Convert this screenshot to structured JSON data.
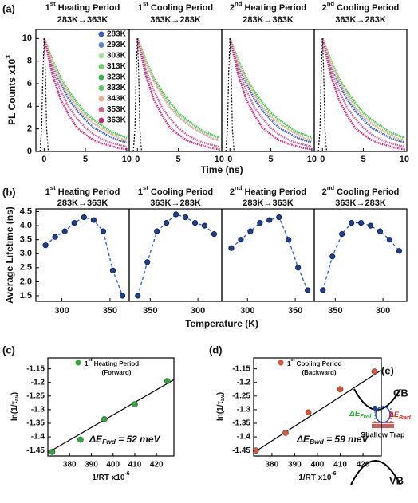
{
  "chart_data": [
    {
      "type": "line",
      "panel_label": "(a)",
      "ylabel": "PL Counts x10",
      "ylabel_sup": "3",
      "xlabel": "Time (ns)",
      "xlim": [
        -1,
        10.3
      ],
      "xticks": [
        0,
        5,
        10
      ],
      "ylim": [
        0,
        10.8
      ],
      "yticks": [
        0,
        2,
        4,
        6,
        8,
        10
      ],
      "x": [
        0,
        1,
        2,
        3,
        4,
        5,
        6,
        7,
        8,
        9,
        10
      ],
      "series": [
        {
          "name": "283K",
          "color": "#3a5bbf"
        },
        {
          "name": "293K",
          "color": "#5b86d6"
        },
        {
          "name": "303K",
          "color": "#a6e3a1"
        },
        {
          "name": "313K",
          "color": "#72d26a"
        },
        {
          "name": "323K",
          "color": "#2fb54a"
        },
        {
          "name": "333K",
          "color": "#58c95a"
        },
        {
          "name": "343K",
          "color": "#e9b08a"
        },
        {
          "name": "353K",
          "color": "#c8609a"
        },
        {
          "name": "363K",
          "color": "#c02a7e"
        }
      ],
      "irf": {
        "x": [
          -0.5,
          -0.3,
          -0.15,
          0,
          0.15,
          0.3,
          0.5
        ],
        "values": [
          0,
          2,
          7,
          10,
          7,
          2,
          0
        ]
      },
      "panels": [
        {
          "title_num": "1",
          "title_sup": "st",
          "title_rest": " Heating Period",
          "subtitle": "283K→363K",
          "subtitle_color": "#d42020",
          "values": [
            [
              10,
              7.7,
              6.0,
              4.6,
              3.6,
              2.8,
              2.1,
              1.7,
              1.3,
              1.0,
              0.8
            ],
            [
              10,
              7.9,
              6.3,
              5.0,
              3.9,
              3.1,
              2.5,
              2.0,
              1.6,
              1.2,
              1.0
            ],
            [
              10,
              7.9,
              6.3,
              5.0,
              3.9,
              3.1,
              2.5,
              2.0,
              1.6,
              1.2,
              1.0
            ],
            [
              10,
              8.1,
              6.5,
              5.3,
              4.3,
              3.4,
              2.8,
              2.3,
              1.8,
              1.5,
              1.2
            ],
            [
              10,
              8.1,
              6.5,
              5.3,
              4.3,
              3.4,
              2.8,
              2.3,
              1.8,
              1.5,
              1.2
            ],
            [
              10,
              8.1,
              6.5,
              5.3,
              4.3,
              3.4,
              2.8,
              2.3,
              1.8,
              1.5,
              1.2
            ],
            [
              10,
              7.9,
              6.3,
              5.0,
              3.9,
              3.1,
              2.5,
              2.0,
              1.6,
              1.2,
              1.0
            ],
            [
              10,
              7.3,
              5.4,
              3.9,
              2.9,
              2.1,
              1.5,
              1.1,
              0.8,
              0.6,
              0.4
            ],
            [
              10,
              6.8,
              4.6,
              3.2,
              2.1,
              1.5,
              1.0,
              0.7,
              0.5,
              0.3,
              0.2
            ]
          ]
        },
        {
          "title_num": "1",
          "title_sup": "st",
          "title_rest": " Cooling Period",
          "subtitle": "363K→283K",
          "subtitle_color": "#1f4fd0",
          "values": [
            [
              10,
              7.9,
              6.3,
              5.0,
              3.9,
              3.1,
              2.5,
              2.0,
              1.6,
              1.2,
              1.0
            ],
            [
              10,
              7.9,
              6.3,
              5.0,
              3.9,
              3.1,
              2.5,
              2.0,
              1.6,
              1.2,
              1.0
            ],
            [
              10,
              8.1,
              6.5,
              5.3,
              4.3,
              3.4,
              2.8,
              2.3,
              1.8,
              1.5,
              1.2
            ],
            [
              10,
              8.1,
              6.5,
              5.3,
              4.3,
              3.4,
              2.8,
              2.3,
              1.8,
              1.5,
              1.2
            ],
            [
              10,
              8.1,
              6.5,
              5.3,
              4.3,
              3.4,
              2.8,
              2.3,
              1.8,
              1.5,
              1.2
            ],
            [
              10,
              8.1,
              6.5,
              5.3,
              4.3,
              3.4,
              2.8,
              2.3,
              1.8,
              1.5,
              1.2
            ],
            [
              10,
              7.9,
              6.3,
              5.0,
              3.9,
              3.1,
              2.5,
              2.0,
              1.6,
              1.2,
              1.0
            ],
            [
              10,
              7.3,
              5.4,
              3.9,
              2.9,
              2.1,
              1.5,
              1.1,
              0.8,
              0.6,
              0.4
            ],
            [
              10,
              6.8,
              4.6,
              3.2,
              2.1,
              1.5,
              1.0,
              0.7,
              0.5,
              0.3,
              0.2
            ]
          ]
        },
        {
          "title_num": "2",
          "title_sup": "nd",
          "title_rest": " Heating Period",
          "subtitle": "283K→363K",
          "subtitle_color": "#d42020",
          "values": [
            [
              10,
              7.7,
              6.0,
              4.6,
              3.6,
              2.8,
              2.1,
              1.7,
              1.3,
              1.0,
              0.8
            ],
            [
              10,
              7.9,
              6.3,
              5.0,
              3.9,
              3.1,
              2.5,
              2.0,
              1.6,
              1.2,
              1.0
            ],
            [
              10,
              7.9,
              6.3,
              5.0,
              3.9,
              3.1,
              2.5,
              2.0,
              1.6,
              1.2,
              1.0
            ],
            [
              10,
              8.1,
              6.5,
              5.3,
              4.3,
              3.4,
              2.8,
              2.3,
              1.8,
              1.5,
              1.2
            ],
            [
              10,
              8.1,
              6.5,
              5.3,
              4.3,
              3.4,
              2.8,
              2.3,
              1.8,
              1.5,
              1.2
            ],
            [
              10,
              8.1,
              6.5,
              5.3,
              4.3,
              3.4,
              2.8,
              2.3,
              1.8,
              1.5,
              1.2
            ],
            [
              10,
              7.9,
              6.3,
              5.0,
              3.9,
              3.1,
              2.5,
              2.0,
              1.6,
              1.2,
              1.0
            ],
            [
              10,
              7.3,
              5.4,
              3.9,
              2.9,
              2.1,
              1.5,
              1.1,
              0.8,
              0.6,
              0.4
            ],
            [
              10,
              6.8,
              4.6,
              3.2,
              2.1,
              1.5,
              1.0,
              0.7,
              0.5,
              0.3,
              0.2
            ]
          ]
        },
        {
          "title_num": "2",
          "title_sup": "nd",
          "title_rest": " Cooling Period",
          "subtitle": "363K→283K",
          "subtitle_color": "#1f4fd0",
          "values": [
            [
              10,
              7.7,
              6.0,
              4.6,
              3.6,
              2.8,
              2.1,
              1.7,
              1.3,
              1.0,
              0.8
            ],
            [
              10,
              7.9,
              6.3,
              5.0,
              3.9,
              3.1,
              2.5,
              2.0,
              1.6,
              1.2,
              1.0
            ],
            [
              10,
              7.9,
              6.3,
              5.0,
              3.9,
              3.1,
              2.5,
              2.0,
              1.6,
              1.2,
              1.0
            ],
            [
              10,
              8.1,
              6.5,
              5.3,
              4.3,
              3.4,
              2.8,
              2.3,
              1.8,
              1.5,
              1.2
            ],
            [
              10,
              8.1,
              6.5,
              5.3,
              4.3,
              3.4,
              2.8,
              2.3,
              1.8,
              1.5,
              1.2
            ],
            [
              10,
              8.1,
              6.5,
              5.3,
              4.3,
              3.4,
              2.8,
              2.3,
              1.8,
              1.5,
              1.2
            ],
            [
              10,
              7.9,
              6.3,
              5.0,
              3.9,
              3.1,
              2.5,
              2.0,
              1.6,
              1.2,
              1.0
            ],
            [
              10,
              7.3,
              5.4,
              3.9,
              2.9,
              2.1,
              1.5,
              1.1,
              0.8,
              0.6,
              0.4
            ],
            [
              10,
              6.8,
              4.6,
              3.2,
              2.1,
              1.5,
              1.0,
              0.7,
              0.5,
              0.3,
              0.2
            ]
          ]
        }
      ]
    },
    {
      "type": "line",
      "panel_label": "(b)",
      "ylabel": "Average Lifetime (ns)",
      "xlabel": "Temperature (K)",
      "ylim": [
        1.3,
        4.6
      ],
      "yticks": [
        1.5,
        {
          "value": 2,
          "label": "2.0"
        },
        2.5,
        {
          "value": 3,
          "label": "3.0"
        },
        3.5,
        {
          "value": 4,
          "label": "4.0"
        },
        4.5
      ],
      "color": "#1f3f8f",
      "line_color": "#2a5bd7",
      "panels": [
        {
          "title_num": "1",
          "title_sup": "st",
          "title_rest": " Heating Period",
          "subtitle": "283K→363K",
          "subtitle_color": "#d42020",
          "xlim": [
            273,
            370
          ],
          "xticks": [
            300,
            350
          ],
          "x": [
            283,
            293,
            303,
            313,
            323,
            333,
            343,
            353,
            363
          ],
          "values": [
            3.3,
            3.6,
            3.8,
            4.1,
            4.3,
            4.2,
            3.8,
            2.4,
            1.5
          ]
        },
        {
          "title_num": "1",
          "title_sup": "st",
          "title_rest": " Cooling Period",
          "subtitle": "363K→283K",
          "subtitle_color": "#1f4fd0",
          "xlim": [
            372,
            275
          ],
          "xticks": [
            350,
            300
          ],
          "x": [
            363,
            353,
            343,
            333,
            323,
            313,
            303,
            293,
            283
          ],
          "values": [
            1.5,
            2.7,
            3.8,
            4.1,
            4.4,
            4.3,
            4.1,
            4.0,
            3.7
          ]
        },
        {
          "title_num": "2",
          "title_sup": "nd",
          "title_rest": " Heating Period",
          "subtitle": "283K→363K",
          "subtitle_color": "#d42020",
          "xlim": [
            273,
            370
          ],
          "xticks": [
            300,
            350
          ],
          "x": [
            283,
            293,
            303,
            313,
            323,
            333,
            343,
            353,
            363
          ],
          "values": [
            3.2,
            3.5,
            3.8,
            4.1,
            4.2,
            4.3,
            3.5,
            2.5,
            1.7
          ]
        },
        {
          "title_num": "2",
          "title_sup": "nd",
          "title_rest": " Cooling Period",
          "subtitle": "363K→283K",
          "subtitle_color": "#1f4fd0",
          "xlim": [
            372,
            275
          ],
          "xticks": [
            350,
            300
          ],
          "x": [
            363,
            353,
            343,
            333,
            323,
            313,
            303,
            293,
            283
          ],
          "values": [
            1.7,
            2.9,
            3.7,
            4.1,
            4.1,
            4.0,
            3.8,
            3.5,
            3.1
          ]
        }
      ]
    },
    {
      "type": "scatter",
      "panel_label": "(c)",
      "ylabel_parts": [
        "ln(1/τ",
        "av",
        ")"
      ],
      "xlabel": "1/RT x10",
      "xlabel_sup": "-6",
      "xlim": [
        370,
        428
      ],
      "xticks": [
        380,
        390,
        400,
        410,
        420
      ],
      "ylim": [
        -1.47,
        -1.11
      ],
      "yticks": [
        -1.15,
        -1.2,
        -1.25,
        -1.3,
        -1.35,
        -1.4,
        -1.45
      ],
      "color": "#2fa83a",
      "legend_num": "1",
      "legend_sup": "st",
      "legend_rest": " Heating Period",
      "legend_sub": "(Forward)",
      "x": [
        372,
        385,
        396,
        410,
        425
      ],
      "values": [
        -1.455,
        -1.41,
        -1.335,
        -1.28,
        -1.195
      ],
      "fit": {
        "x": [
          370,
          428
        ],
        "values": [
          -1.458,
          -1.19
        ]
      },
      "annotation": [
        "ΔE",
        "Fwd",
        " = 52 meV"
      ]
    },
    {
      "type": "scatter",
      "panel_label": "(d)",
      "ylabel_parts": [
        "ln(1/τ",
        "av",
        ")"
      ],
      "xlabel": "1/RT x10",
      "xlabel_sup": "-6",
      "xlim": [
        372,
        428
      ],
      "xticks": [
        380,
        390,
        400,
        410,
        420
      ],
      "ylim": [
        -1.47,
        -1.11
      ],
      "yticks": [
        -1.15,
        -1.2,
        -1.25,
        -1.3,
        -1.35,
        -1.4,
        -1.45
      ],
      "color": "#d9553a",
      "legend_num": "1",
      "legend_sup": "st",
      "legend_rest": " Cooling Period",
      "legend_sub": "(Backward)",
      "x": [
        373,
        386,
        396,
        410,
        425
      ],
      "values": [
        -1.45,
        -1.385,
        -1.31,
        -1.225,
        -1.16
      ],
      "fit": {
        "x": [
          372,
          428
        ],
        "values": [
          -1.458,
          -1.155
        ]
      },
      "annotation": [
        "ΔE",
        "Bwd",
        " = 59 meV"
      ]
    }
  ],
  "diagram": {
    "label": "(e)",
    "cb": "CB",
    "vb": "VB",
    "fwd": [
      "ΔE",
      "Fwd"
    ],
    "bwd": [
      "ΔE",
      "Bwd"
    ],
    "trap": "Shallow Trap"
  }
}
